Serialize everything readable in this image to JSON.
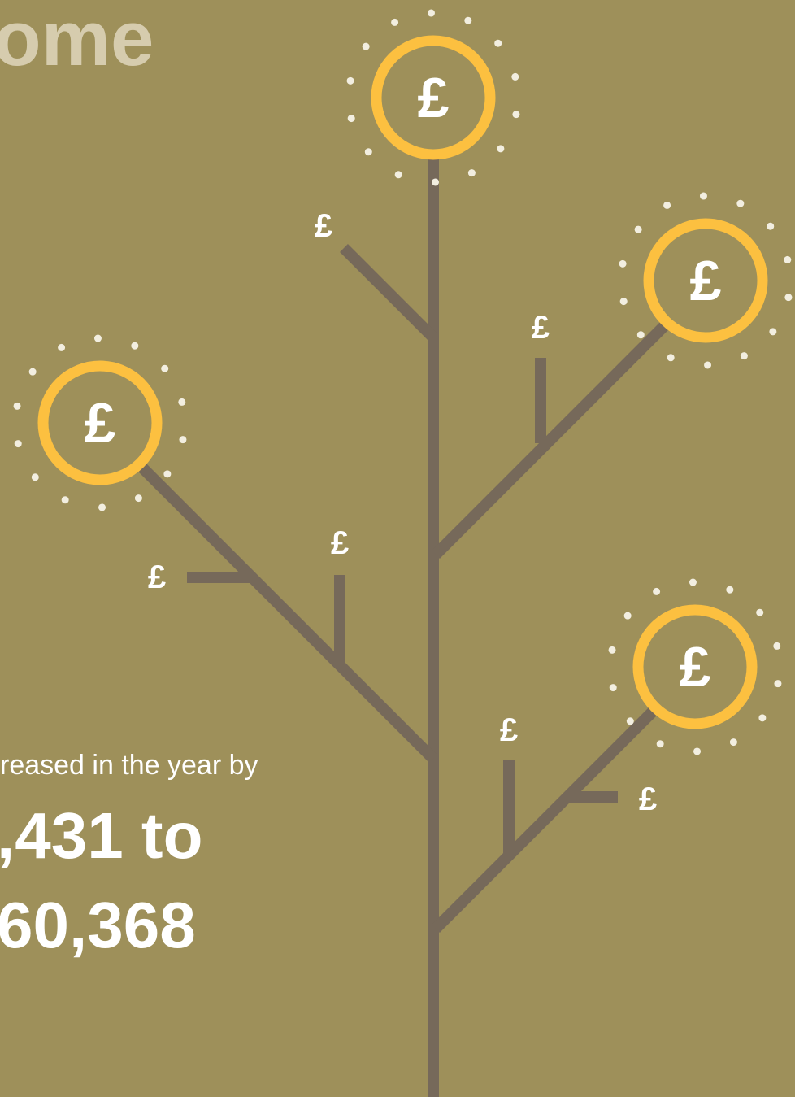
{
  "title": "ome",
  "body": {
    "intro": "reased in the year by",
    "line1": ",431 to",
    "line2": "60,368"
  },
  "coins": [
    "£",
    "£",
    "£",
    "£"
  ],
  "small_labels": [
    "£",
    "£",
    "£",
    "£",
    "£",
    "£"
  ]
}
